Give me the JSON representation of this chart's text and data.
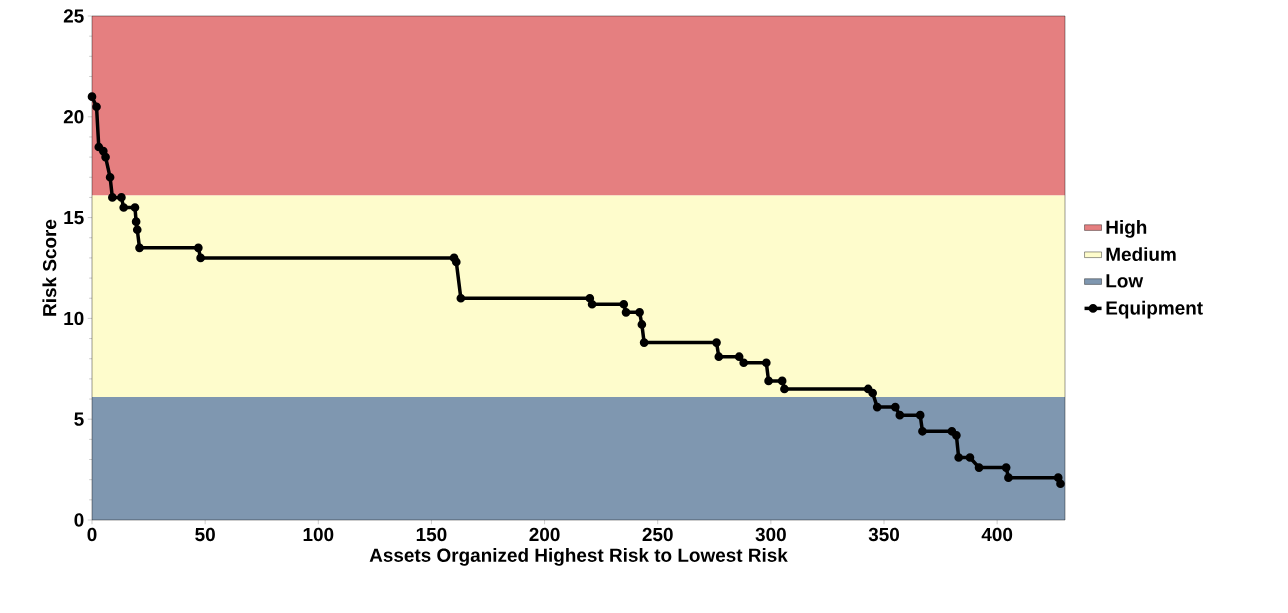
{
  "chart_data": {
    "type": "line",
    "xlabel": "Assets Organized Highest Risk to Lowest Risk",
    "ylabel": "Risk Score",
    "xlim": [
      0,
      430
    ],
    "ylim": [
      0,
      25
    ],
    "xticks": [
      0,
      50,
      100,
      150,
      200,
      250,
      300,
      350,
      400
    ],
    "yticks": [
      0,
      5,
      10,
      15,
      20,
      25
    ],
    "bands": [
      {
        "axis": "y",
        "from": 16.1,
        "to": 25,
        "label": "High",
        "color": "#e57f80"
      },
      {
        "axis": "y",
        "from": 6.1,
        "to": 16.1,
        "label": "Medium",
        "color": "#fefccc"
      },
      {
        "axis": "y",
        "from": 0,
        "to": 6.1,
        "label": "Low",
        "color": "#7f97b0"
      }
    ],
    "series": [
      {
        "name": "Equipment",
        "color": "#000000",
        "x": [
          0,
          2,
          3,
          5,
          6,
          8,
          9,
          13,
          14,
          19,
          19.5,
          20,
          21,
          47,
          48,
          160,
          161,
          163,
          220,
          221,
          235,
          236,
          242,
          243,
          244,
          276,
          277,
          286,
          288,
          298,
          299,
          305,
          306,
          343,
          345,
          347,
          355,
          357,
          366,
          367,
          380,
          382,
          383,
          388,
          392,
          404,
          405,
          427,
          428
        ],
        "values": [
          21,
          20.5,
          18.5,
          18.3,
          18,
          17,
          16,
          16,
          15.5,
          15.5,
          14.8,
          14.4,
          13.5,
          13.5,
          13,
          13,
          12.8,
          11,
          11,
          10.7,
          10.7,
          10.3,
          10.3,
          9.7,
          8.8,
          8.8,
          8.1,
          8.1,
          7.8,
          7.8,
          6.9,
          6.9,
          6.5,
          6.5,
          6.3,
          5.6,
          5.6,
          5.2,
          5.2,
          4.4,
          4.4,
          4.2,
          3.1,
          3.1,
          2.6,
          2.6,
          2.1,
          2.1,
          1.8
        ]
      }
    ],
    "marker": "circle",
    "line_style": "solid",
    "legend": "right",
    "grid": false
  }
}
